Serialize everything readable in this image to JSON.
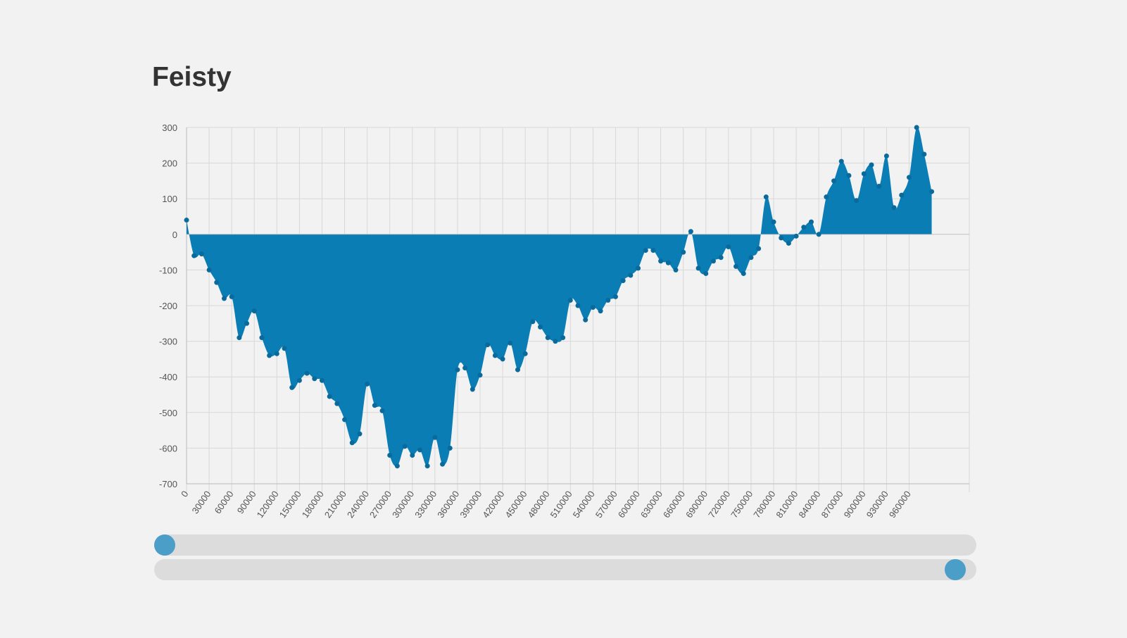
{
  "title": "Feisty",
  "chart_data": {
    "type": "area",
    "ylim": [
      -700,
      300
    ],
    "xlim": [
      0,
      1000000
    ],
    "yticks": [
      300,
      200,
      100,
      0,
      -100,
      -200,
      -300,
      -400,
      -500,
      -600,
      -700
    ],
    "xticks": [
      0,
      30000,
      60000,
      90000,
      120000,
      150000,
      180000,
      210000,
      240000,
      270000,
      300000,
      330000,
      360000,
      390000,
      420000,
      450000,
      480000,
      510000,
      540000,
      570000,
      600000,
      630000,
      660000,
      690000,
      720000,
      750000,
      780000,
      810000,
      840000,
      870000,
      900000,
      930000,
      960000
    ],
    "grid": true,
    "color": "#0a7db5",
    "points": [
      [
        0,
        40
      ],
      [
        10000,
        -60
      ],
      [
        20000,
        -55
      ],
      [
        30000,
        -100
      ],
      [
        40000,
        -135
      ],
      [
        50000,
        -180
      ],
      [
        60000,
        -175
      ],
      [
        70000,
        -290
      ],
      [
        80000,
        -250
      ],
      [
        90000,
        -215
      ],
      [
        100000,
        -290
      ],
      [
        110000,
        -340
      ],
      [
        120000,
        -335
      ],
      [
        130000,
        -320
      ],
      [
        140000,
        -430
      ],
      [
        150000,
        -410
      ],
      [
        160000,
        -390
      ],
      [
        170000,
        -405
      ],
      [
        180000,
        -410
      ],
      [
        190000,
        -455
      ],
      [
        200000,
        -475
      ],
      [
        210000,
        -520
      ],
      [
        220000,
        -585
      ],
      [
        230000,
        -560
      ],
      [
        240000,
        -420
      ],
      [
        250000,
        -480
      ],
      [
        260000,
        -495
      ],
      [
        270000,
        -620
      ],
      [
        280000,
        -650
      ],
      [
        290000,
        -595
      ],
      [
        300000,
        -620
      ],
      [
        310000,
        -605
      ],
      [
        320000,
        -650
      ],
      [
        330000,
        -570
      ],
      [
        340000,
        -645
      ],
      [
        350000,
        -600
      ],
      [
        360000,
        -380
      ],
      [
        370000,
        -375
      ],
      [
        380000,
        -435
      ],
      [
        390000,
        -395
      ],
      [
        400000,
        -310
      ],
      [
        410000,
        -340
      ],
      [
        420000,
        -350
      ],
      [
        430000,
        -305
      ],
      [
        440000,
        -380
      ],
      [
        450000,
        -335
      ],
      [
        460000,
        -245
      ],
      [
        470000,
        -260
      ],
      [
        480000,
        -290
      ],
      [
        490000,
        -300
      ],
      [
        500000,
        -290
      ],
      [
        510000,
        -185
      ],
      [
        520000,
        -200
      ],
      [
        530000,
        -240
      ],
      [
        540000,
        -205
      ],
      [
        550000,
        -215
      ],
      [
        560000,
        -185
      ],
      [
        570000,
        -175
      ],
      [
        580000,
        -130
      ],
      [
        590000,
        -115
      ],
      [
        600000,
        -95
      ],
      [
        610000,
        -45
      ],
      [
        620000,
        -45
      ],
      [
        630000,
        -75
      ],
      [
        640000,
        -80
      ],
      [
        650000,
        -100
      ],
      [
        660000,
        -50
      ],
      [
        670000,
        8
      ],
      [
        680000,
        -95
      ],
      [
        690000,
        -110
      ],
      [
        700000,
        -75
      ],
      [
        710000,
        -65
      ],
      [
        720000,
        -35
      ],
      [
        730000,
        -90
      ],
      [
        740000,
        -110
      ],
      [
        750000,
        -65
      ],
      [
        760000,
        -40
      ],
      [
        770000,
        105
      ],
      [
        780000,
        35
      ],
      [
        790000,
        -10
      ],
      [
        800000,
        -25
      ],
      [
        810000,
        -5
      ],
      [
        820000,
        20
      ],
      [
        830000,
        35
      ],
      [
        840000,
        0
      ],
      [
        850000,
        105
      ],
      [
        860000,
        150
      ],
      [
        870000,
        205
      ],
      [
        880000,
        165
      ],
      [
        890000,
        95
      ],
      [
        900000,
        170
      ],
      [
        910000,
        195
      ],
      [
        920000,
        135
      ],
      [
        930000,
        220
      ],
      [
        940000,
        75
      ],
      [
        950000,
        110
      ],
      [
        960000,
        160
      ],
      [
        970000,
        300
      ],
      [
        980000,
        225
      ],
      [
        990000,
        120
      ]
    ]
  },
  "slider": {
    "start": 0,
    "end": 1
  }
}
